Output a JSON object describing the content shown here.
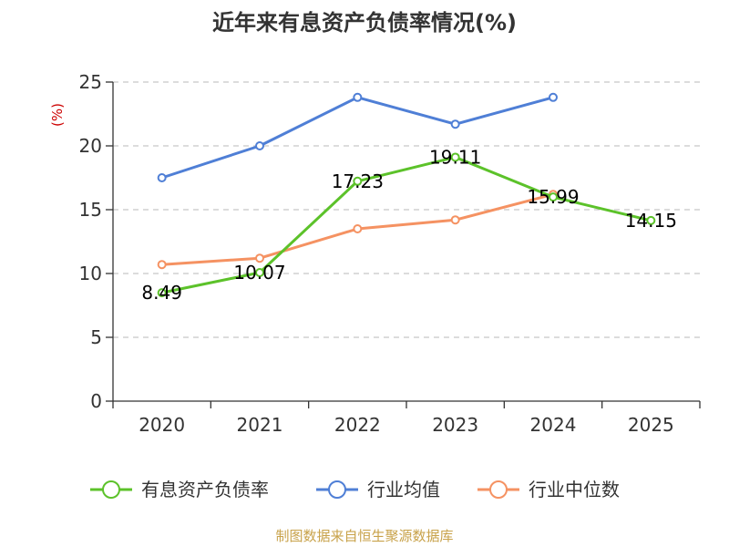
{
  "chart_data": {
    "type": "line",
    "title": "近年来有息资产负债率情况(%)",
    "ylabel": "(%)",
    "xlabel": "",
    "categories": [
      "2020",
      "2021",
      "2022",
      "2023",
      "2024",
      "2025"
    ],
    "ylim": [
      0,
      25
    ],
    "yticks": [
      0,
      5,
      10,
      15,
      20,
      25
    ],
    "grid": true,
    "legend_position": "bottom",
    "series": [
      {
        "name": "有息资产负债率",
        "color": "#5cc22a",
        "values": [
          8.49,
          10.07,
          17.23,
          19.11,
          15.99,
          14.15
        ],
        "labels": [
          "8.49",
          "10.07",
          "17.23",
          "19.11",
          "15.99",
          "14.15"
        ]
      },
      {
        "name": "行业均值",
        "color": "#4f7fd6",
        "values": [
          17.5,
          20.0,
          23.8,
          21.7,
          23.8,
          null
        ]
      },
      {
        "name": "行业中位数",
        "color": "#f59262",
        "values": [
          10.7,
          11.2,
          13.5,
          14.2,
          16.2,
          null
        ]
      }
    ]
  },
  "source": "制图数据来自恒生聚源数据库"
}
